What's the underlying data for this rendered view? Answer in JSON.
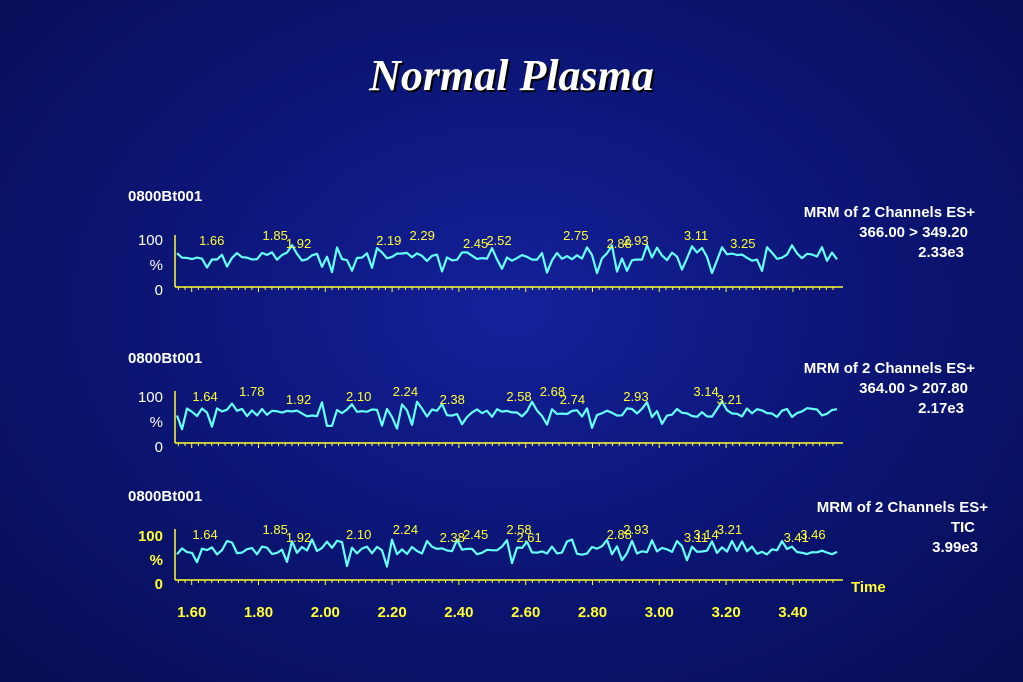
{
  "title": "Normal Plasma",
  "colors": {
    "trace": "#66ffff",
    "axis": "#ffff33",
    "text": "#ffffff",
    "peak_label": "#ffff33",
    "background": "#0c1678"
  },
  "chart_data": [
    {
      "type": "line",
      "sample": "0800Bt001",
      "info": [
        "MRM of 2 Channels ES+",
        "366.00 > 349.20",
        "2.33e3"
      ],
      "y_ticks": [
        "100",
        "%",
        "0"
      ],
      "xlim": [
        1.55,
        3.55
      ],
      "peaks": [
        {
          "x": 1.66,
          "label": "1.66"
        },
        {
          "x": 1.85,
          "label": "1.85"
        },
        {
          "x": 1.92,
          "label": "1.92"
        },
        {
          "x": 2.19,
          "label": "2.19"
        },
        {
          "x": 2.29,
          "label": "2.29"
        },
        {
          "x": 2.45,
          "label": "2.45"
        },
        {
          "x": 2.52,
          "label": "2.52"
        },
        {
          "x": 2.75,
          "label": "2.75"
        },
        {
          "x": 2.88,
          "label": "2.88"
        },
        {
          "x": 2.93,
          "label": "2.93"
        },
        {
          "x": 3.11,
          "label": "3.11"
        },
        {
          "x": 3.25,
          "label": "3.25"
        }
      ]
    },
    {
      "type": "line",
      "sample": "0800Bt001",
      "info": [
        "MRM of 2 Channels ES+",
        "364.00 > 207.80",
        "2.17e3"
      ],
      "y_ticks": [
        "100",
        "%",
        "0"
      ],
      "xlim": [
        1.55,
        3.55
      ],
      "peaks": [
        {
          "x": 1.64,
          "label": "1.64"
        },
        {
          "x": 1.78,
          "label": "1.78"
        },
        {
          "x": 1.92,
          "label": "1.92"
        },
        {
          "x": 2.1,
          "label": "2.10"
        },
        {
          "x": 2.24,
          "label": "2.24"
        },
        {
          "x": 2.38,
          "label": "2.38"
        },
        {
          "x": 2.58,
          "label": "2.58"
        },
        {
          "x": 2.68,
          "label": "2.68"
        },
        {
          "x": 2.74,
          "label": "2.74"
        },
        {
          "x": 2.93,
          "label": "2.93"
        },
        {
          "x": 3.14,
          "label": "3.14"
        },
        {
          "x": 3.21,
          "label": "3.21"
        }
      ]
    },
    {
      "type": "line",
      "sample": "0800Bt001",
      "info": [
        "MRM of 2 Channels ES+",
        "TIC",
        "3.99e3"
      ],
      "y_ticks": [
        "100",
        "%",
        "0"
      ],
      "xlim": [
        1.55,
        3.55
      ],
      "xlabel": "Time",
      "x_ticks": [
        1.6,
        1.8,
        2.0,
        2.2,
        2.4,
        2.6,
        2.8,
        3.0,
        3.2,
        3.4
      ],
      "x_tick_labels": [
        "1.60",
        "1.80",
        "2.00",
        "2.20",
        "2.40",
        "2.60",
        "2.80",
        "3.00",
        "3.20",
        "3.40"
      ],
      "peaks": [
        {
          "x": 1.64,
          "label": "1.64"
        },
        {
          "x": 1.85,
          "label": "1.85"
        },
        {
          "x": 1.92,
          "label": "1.92"
        },
        {
          "x": 2.1,
          "label": "2.10"
        },
        {
          "x": 2.24,
          "label": "2.24"
        },
        {
          "x": 2.38,
          "label": "2.38"
        },
        {
          "x": 2.45,
          "label": "2.45"
        },
        {
          "x": 2.58,
          "label": "2.58"
        },
        {
          "x": 2.61,
          "label": "2.61"
        },
        {
          "x": 2.88,
          "label": "2.88"
        },
        {
          "x": 2.93,
          "label": "2.93"
        },
        {
          "x": 3.11,
          "label": "3.11"
        },
        {
          "x": 3.14,
          "label": "3.14"
        },
        {
          "x": 3.21,
          "label": "3.21"
        },
        {
          "x": 3.41,
          "label": "3.41"
        },
        {
          "x": 3.46,
          "label": "3.46"
        }
      ]
    }
  ]
}
